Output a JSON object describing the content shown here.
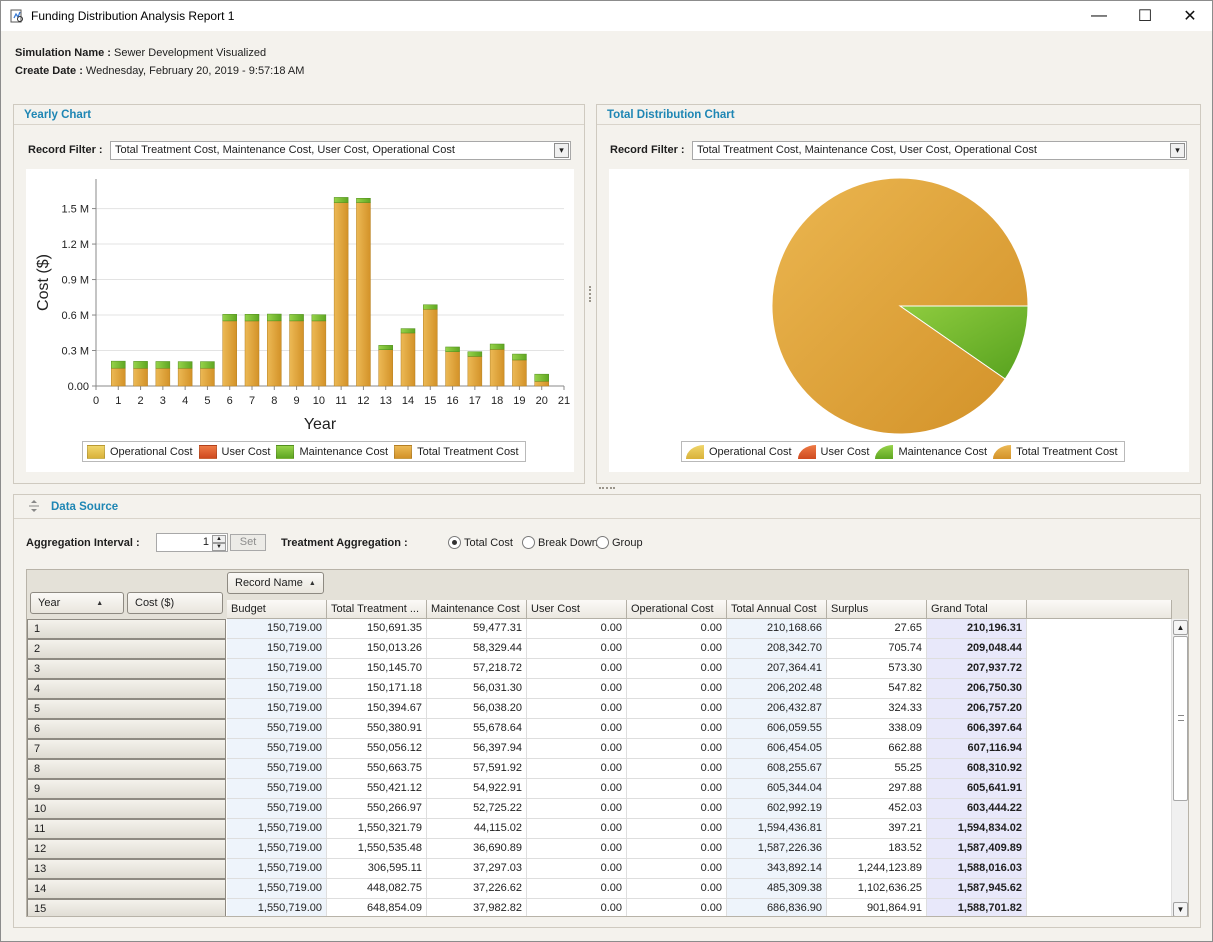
{
  "window": {
    "title": "Funding Distribution Analysis Report 1",
    "minimize": "—",
    "maximize": "☐",
    "close": "✕"
  },
  "meta": {
    "sim_label": "Simulation Name :",
    "sim_value": "Sewer Development Visualized",
    "date_label": "Create Date :",
    "date_value": "Wednesday, February 20, 2019 - 9:57:18 AM"
  },
  "yearly": {
    "title": "Yearly Chart",
    "filter_label": "Record Filter :",
    "filter_value": "Total Treatment Cost, Maintenance Cost, User Cost, Operational Cost"
  },
  "total": {
    "title": "Total Distribution Chart",
    "filter_label": "Record Filter :",
    "filter_value": "Total Treatment Cost, Maintenance Cost, User Cost, Operational Cost"
  },
  "legend": [
    {
      "label": "Operational Cost",
      "color": "#e6c64a"
    },
    {
      "label": "User Cost",
      "color": "#e2572b"
    },
    {
      "label": "Maintenance Cost",
      "color": "#7cbd2e"
    },
    {
      "label": "Total Treatment Cost",
      "color": "#dea33e"
    }
  ],
  "chart_data": [
    {
      "type": "bar",
      "stacked": true,
      "xlabel": "Year",
      "ylabel": "Cost ($)",
      "x_ticks": [
        "0",
        "1",
        "2",
        "3",
        "4",
        "5",
        "6",
        "7",
        "8",
        "9",
        "10",
        "11",
        "12",
        "13",
        "14",
        "15",
        "16",
        "17",
        "18",
        "19",
        "20",
        "21"
      ],
      "y_ticks": [
        "0.00",
        "0.3 M",
        "0.6 M",
        "0.9 M",
        "1.2 M",
        "1.5 M"
      ],
      "ylim": [
        0,
        1750000
      ],
      "xlim": [
        0,
        21
      ],
      "categories": [
        1,
        2,
        3,
        4,
        5,
        6,
        7,
        8,
        9,
        10,
        11,
        12,
        13,
        14,
        15,
        16,
        17,
        18,
        19,
        20
      ],
      "series": [
        {
          "name": "Operational Cost",
          "values": [
            0,
            0,
            0,
            0,
            0,
            0,
            0,
            0,
            0,
            0,
            0,
            0,
            0,
            0,
            0,
            0,
            0,
            0,
            0,
            0
          ]
        },
        {
          "name": "User Cost",
          "values": [
            0,
            0,
            0,
            0,
            0,
            0,
            0,
            0,
            0,
            0,
            0,
            0,
            0,
            0,
            0,
            0,
            0,
            0,
            0,
            0
          ]
        },
        {
          "name": "Total Treatment Cost",
          "values": [
            150691.35,
            150013.26,
            150145.7,
            150171.18,
            150394.67,
            550380.91,
            550056.12,
            550663.75,
            550421.12,
            550266.97,
            1550321.79,
            1550535.48,
            306595.11,
            448082.75,
            648854.09,
            290000,
            250000,
            310000,
            220000,
            40000
          ]
        },
        {
          "name": "Maintenance Cost",
          "values": [
            59477.31,
            58329.44,
            57218.72,
            56031.3,
            56038.2,
            55678.64,
            56397.94,
            57591.92,
            54922.91,
            52725.22,
            44115.02,
            36690.89,
            37297.03,
            37226.62,
            37982.82,
            40000,
            40000,
            45000,
            50000,
            60000
          ]
        }
      ],
      "grid": true,
      "legend_position": "bottom"
    },
    {
      "type": "pie",
      "slices": [
        {
          "name": "Operational Cost",
          "value": 0
        },
        {
          "name": "User Cost",
          "value": 0
        },
        {
          "name": "Maintenance Cost",
          "value": 1000000
        },
        {
          "name": "Total Treatment Cost",
          "value": 9350000
        }
      ],
      "legend_position": "bottom"
    }
  ],
  "data_source": {
    "title": "Data Source",
    "agg_label": "Aggregation Interval :",
    "agg_value": "1",
    "set_label": "Set",
    "treat_label": "Treatment Aggregation :",
    "radios": [
      {
        "label": "Total Cost",
        "checked": true
      },
      {
        "label": "Break Down",
        "checked": false
      },
      {
        "label": "Group",
        "checked": false
      }
    ],
    "record_name_btn": "Record Name",
    "year_btn": "Year",
    "cost_btn": "Cost ($)",
    "columns": [
      "Budget",
      "Total Treatment ...",
      "Maintenance Cost",
      "User Cost",
      "Operational Cost",
      "Total Annual Cost",
      "Surplus",
      "Grand Total"
    ],
    "rows": [
      {
        "year": "1",
        "cells": [
          "150,719.00",
          "150,691.35",
          "59,477.31",
          "0.00",
          "0.00",
          "210,168.66",
          "27.65",
          "210,196.31"
        ]
      },
      {
        "year": "2",
        "cells": [
          "150,719.00",
          "150,013.26",
          "58,329.44",
          "0.00",
          "0.00",
          "208,342.70",
          "705.74",
          "209,048.44"
        ]
      },
      {
        "year": "3",
        "cells": [
          "150,719.00",
          "150,145.70",
          "57,218.72",
          "0.00",
          "0.00",
          "207,364.41",
          "573.30",
          "207,937.72"
        ]
      },
      {
        "year": "4",
        "cells": [
          "150,719.00",
          "150,171.18",
          "56,031.30",
          "0.00",
          "0.00",
          "206,202.48",
          "547.82",
          "206,750.30"
        ]
      },
      {
        "year": "5",
        "cells": [
          "150,719.00",
          "150,394.67",
          "56,038.20",
          "0.00",
          "0.00",
          "206,432.87",
          "324.33",
          "206,757.20"
        ]
      },
      {
        "year": "6",
        "cells": [
          "550,719.00",
          "550,380.91",
          "55,678.64",
          "0.00",
          "0.00",
          "606,059.55",
          "338.09",
          "606,397.64"
        ]
      },
      {
        "year": "7",
        "cells": [
          "550,719.00",
          "550,056.12",
          "56,397.94",
          "0.00",
          "0.00",
          "606,454.05",
          "662.88",
          "607,116.94"
        ]
      },
      {
        "year": "8",
        "cells": [
          "550,719.00",
          "550,663.75",
          "57,591.92",
          "0.00",
          "0.00",
          "608,255.67",
          "55.25",
          "608,310.92"
        ]
      },
      {
        "year": "9",
        "cells": [
          "550,719.00",
          "550,421.12",
          "54,922.91",
          "0.00",
          "0.00",
          "605,344.04",
          "297.88",
          "605,641.91"
        ]
      },
      {
        "year": "10",
        "cells": [
          "550,719.00",
          "550,266.97",
          "52,725.22",
          "0.00",
          "0.00",
          "602,992.19",
          "452.03",
          "603,444.22"
        ]
      },
      {
        "year": "11",
        "cells": [
          "1,550,719.00",
          "1,550,321.79",
          "44,115.02",
          "0.00",
          "0.00",
          "1,594,436.81",
          "397.21",
          "1,594,834.02"
        ]
      },
      {
        "year": "12",
        "cells": [
          "1,550,719.00",
          "1,550,535.48",
          "36,690.89",
          "0.00",
          "0.00",
          "1,587,226.36",
          "183.52",
          "1,587,409.89"
        ]
      },
      {
        "year": "13",
        "cells": [
          "1,550,719.00",
          "306,595.11",
          "37,297.03",
          "0.00",
          "0.00",
          "343,892.14",
          "1,244,123.89",
          "1,588,016.03"
        ]
      },
      {
        "year": "14",
        "cells": [
          "1,550,719.00",
          "448,082.75",
          "37,226.62",
          "0.00",
          "0.00",
          "485,309.38",
          "1,102,636.25",
          "1,587,945.62"
        ]
      },
      {
        "year": "15",
        "cells": [
          "1,550,719.00",
          "648,854.09",
          "37,982.82",
          "0.00",
          "0.00",
          "686,836.90",
          "901,864.91",
          "1,588,701.82"
        ]
      }
    ]
  }
}
